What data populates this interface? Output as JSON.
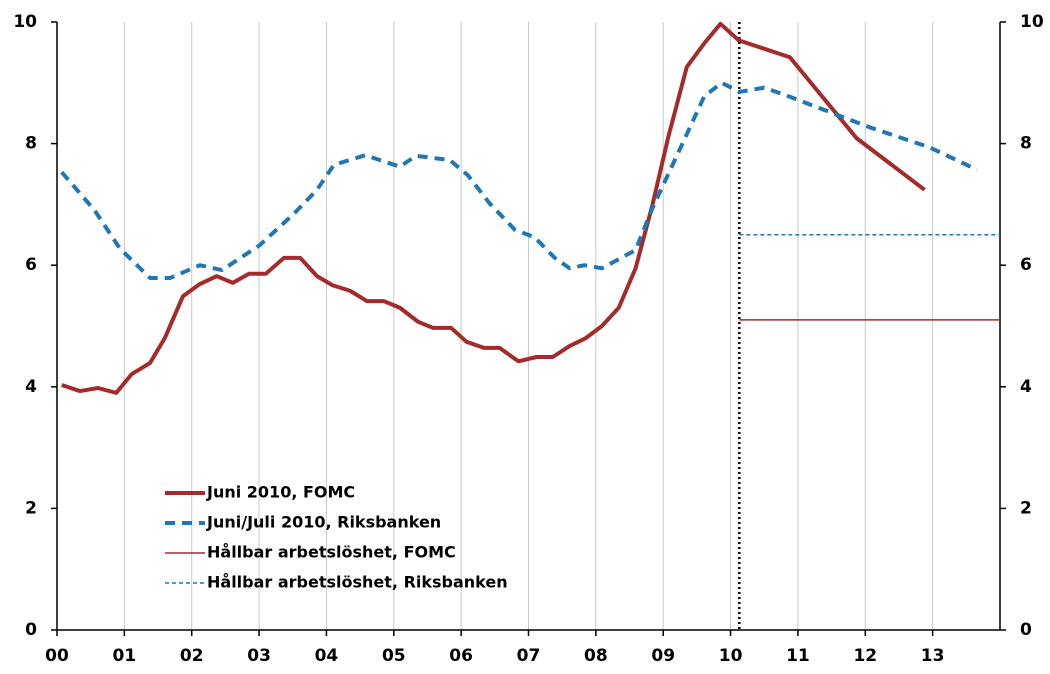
{
  "chart_data": {
    "type": "line",
    "xlim": [
      0,
      14
    ],
    "xticks": [
      {
        "value": 0,
        "label": "00"
      },
      {
        "value": 1,
        "label": "01"
      },
      {
        "value": 2,
        "label": "02"
      },
      {
        "value": 3,
        "label": "03"
      },
      {
        "value": 4,
        "label": "04"
      },
      {
        "value": 5,
        "label": "05"
      },
      {
        "value": 6,
        "label": "06"
      },
      {
        "value": 7,
        "label": "07"
      },
      {
        "value": 8,
        "label": "08"
      },
      {
        "value": 9,
        "label": "09"
      },
      {
        "value": 10,
        "label": "10"
      },
      {
        "value": 11,
        "label": "11"
      },
      {
        "value": 12,
        "label": "12"
      },
      {
        "value": 13,
        "label": "13"
      }
    ],
    "ylim": [
      0,
      10
    ],
    "yticks": [
      0,
      2,
      4,
      6,
      8,
      10
    ],
    "y2lim": [
      0,
      10
    ],
    "y2ticks": [
      0,
      2,
      4,
      6,
      8,
      10
    ],
    "grid": "x",
    "legend": "lower left",
    "vertical_line_x": 10.13,
    "series": [
      {
        "name": "Juni 2010, FOMC",
        "color": "#a52a2a",
        "width": 4,
        "dash": "none",
        "x": [
          0.07,
          0.34,
          0.61,
          0.88,
          1.11,
          1.38,
          1.6,
          1.87,
          2.12,
          2.37,
          2.61,
          2.85,
          3.1,
          3.37,
          3.61,
          3.86,
          4.09,
          4.35,
          4.6,
          4.85,
          5.09,
          5.36,
          5.58,
          5.85,
          6.08,
          6.34,
          6.57,
          6.85,
          7.12,
          7.36,
          7.61,
          7.85,
          8.09,
          8.34,
          8.59,
          8.84,
          9.08,
          9.35,
          9.61,
          9.85,
          10.12,
          10.88,
          11.87,
          12.88
        ],
        "values": [
          4.03,
          3.93,
          3.98,
          3.9,
          4.21,
          4.39,
          4.8,
          5.49,
          5.69,
          5.82,
          5.71,
          5.86,
          5.86,
          6.12,
          6.12,
          5.82,
          5.67,
          5.58,
          5.41,
          5.41,
          5.3,
          5.07,
          4.97,
          4.97,
          4.74,
          4.64,
          4.64,
          4.42,
          4.49,
          4.49,
          4.67,
          4.8,
          5.0,
          5.3,
          5.95,
          6.99,
          8.13,
          9.26,
          9.65,
          9.97,
          9.7,
          9.42,
          8.09,
          7.24
        ]
      },
      {
        "name": "Juni/Juli 2010, Riksbanken",
        "color": "#1f77b4",
        "width": 4,
        "dash": "10 7",
        "x": [
          0.07,
          0.56,
          0.93,
          1.38,
          1.68,
          2.12,
          2.45,
          3.01,
          3.53,
          3.86,
          4.11,
          4.58,
          4.79,
          5.09,
          5.33,
          5.83,
          6.1,
          6.42,
          6.8,
          7.09,
          7.39,
          7.61,
          7.83,
          8.09,
          8.59,
          8.84,
          9.24,
          9.61,
          9.87,
          10.13,
          10.5,
          10.88,
          11.47,
          12.06,
          12.95,
          13.66
        ],
        "values": [
          7.53,
          6.9,
          6.28,
          5.79,
          5.79,
          6.0,
          5.92,
          6.33,
          6.86,
          7.24,
          7.65,
          7.81,
          7.73,
          7.62,
          7.8,
          7.73,
          7.48,
          7.02,
          6.58,
          6.46,
          6.12,
          5.95,
          6.0,
          5.95,
          6.25,
          6.94,
          7.89,
          8.78,
          9.0,
          8.85,
          8.92,
          8.77,
          8.52,
          8.27,
          7.94,
          7.57
        ]
      },
      {
        "name": "Hållbar arbetslöshet, FOMC",
        "color": "#a52a2a",
        "width": 1.5,
        "dash": "none",
        "x": [
          10.13,
          14
        ],
        "values": [
          5.1,
          5.1
        ]
      },
      {
        "name": "Hållbar arbetslöshet, Riksbanken",
        "color": "#1f77b4",
        "width": 1.5,
        "dash": "4 3",
        "x": [
          10.13,
          14
        ],
        "values": [
          6.5,
          6.5
        ]
      }
    ]
  }
}
